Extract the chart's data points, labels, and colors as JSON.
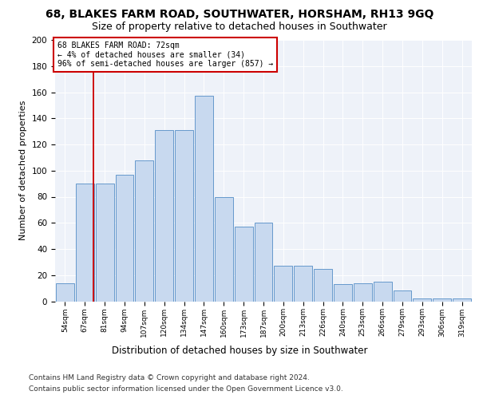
{
  "title": "68, BLAKES FARM ROAD, SOUTHWATER, HORSHAM, RH13 9GQ",
  "subtitle": "Size of property relative to detached houses in Southwater",
  "xlabel": "Distribution of detached houses by size in Southwater",
  "ylabel": "Number of detached properties",
  "categories": [
    "54sqm",
    "67sqm",
    "81sqm",
    "94sqm",
    "107sqm",
    "120sqm",
    "134sqm",
    "147sqm",
    "160sqm",
    "173sqm",
    "187sqm",
    "200sqm",
    "213sqm",
    "226sqm",
    "240sqm",
    "253sqm",
    "266sqm",
    "279sqm",
    "293sqm",
    "306sqm",
    "319sqm"
  ],
  "heights": [
    14,
    90,
    90,
    97,
    108,
    131,
    131,
    157,
    80,
    57,
    60,
    27,
    27,
    25,
    13,
    14,
    15,
    8,
    2,
    2,
    2
  ],
  "bar_color": "#c8d9ef",
  "bar_edge_color": "#6699cc",
  "vline_x": 1.45,
  "vline_color": "#cc0000",
  "annotation_line1": "68 BLAKES FARM ROAD: 72sqm",
  "annotation_line2": "← 4% of detached houses are smaller (34)",
  "annotation_line3": "96% of semi-detached houses are larger (857) →",
  "annotation_box_facecolor": "#ffffff",
  "annotation_box_edgecolor": "#cc0000",
  "ylim": [
    0,
    200
  ],
  "yticks": [
    0,
    20,
    40,
    60,
    80,
    100,
    120,
    140,
    160,
    180,
    200
  ],
  "footer_line1": "Contains HM Land Registry data © Crown copyright and database right 2024.",
  "footer_line2": "Contains public sector information licensed under the Open Government Licence v3.0.",
  "bg_color": "#eef2f9",
  "title_fontsize": 10,
  "subtitle_fontsize": 9,
  "xlabel_fontsize": 8.5,
  "ylabel_fontsize": 8,
  "footer_fontsize": 6.5,
  "tick_fontsize": 6.5,
  "ann_fontsize": 7,
  "ytick_fontsize": 7.5
}
